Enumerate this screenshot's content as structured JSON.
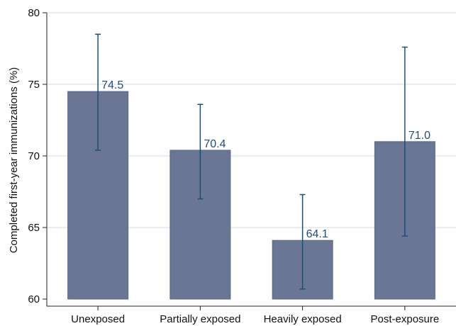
{
  "chart_data": {
    "type": "bar",
    "categories": [
      "Unexposed",
      "Partially exposed",
      "Heavily exposed",
      "Post-exposure"
    ],
    "values": [
      74.5,
      70.4,
      64.1,
      71.0
    ],
    "value_labels": [
      "74.5",
      "70.4",
      "64.1",
      "71.0"
    ],
    "error_bars": [
      {
        "low": 70.4,
        "high": 78.5
      },
      {
        "low": 67.0,
        "high": 73.6
      },
      {
        "low": 60.7,
        "high": 67.3
      },
      {
        "low": 64.4,
        "high": 77.6
      }
    ],
    "ylabel": "Completed first-year immunizations (%)",
    "xlabel": "",
    "ylim": [
      60,
      80
    ],
    "yticks": [
      60,
      65,
      70,
      75,
      80
    ],
    "grid": "horizontal",
    "colors": {
      "bar": "#6a7694",
      "bar_edge": "#5a6686",
      "error_bar": "#1f4e79",
      "value_label": "#1f4e79",
      "grid": "#d6dbe3",
      "axis": "#222222"
    }
  }
}
